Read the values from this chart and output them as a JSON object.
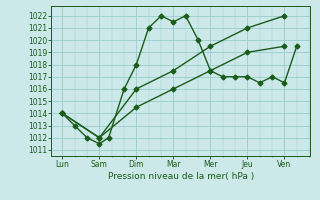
{
  "x_labels": [
    "Lun",
    "Sam",
    "Dim",
    "Mar",
    "Mer",
    "Jeu",
    "Ven"
  ],
  "x_positions": [
    0,
    1,
    2,
    3,
    4,
    5,
    6
  ],
  "line1_x": [
    0,
    0.33,
    0.67,
    1.0,
    1.25,
    1.67,
    2.0,
    2.33,
    2.67,
    3.0,
    3.33,
    3.67,
    4.0,
    4.33,
    4.67,
    5.0,
    5.33,
    5.67,
    6.0,
    6.33
  ],
  "line1_y": [
    1014,
    1013,
    1012,
    1011.5,
    1012,
    1016,
    1018,
    1021,
    1022,
    1021.5,
    1022,
    1020,
    1017.5,
    1017,
    1017,
    1017,
    1016.5,
    1017,
    1016.5,
    1019.5
  ],
  "line2_x": [
    0,
    1,
    2,
    3,
    4,
    5,
    6
  ],
  "line2_y": [
    1014,
    1012,
    1014.5,
    1016,
    1017.5,
    1019,
    1019.5
  ],
  "line3_x": [
    0,
    1,
    2,
    3,
    4,
    5,
    6
  ],
  "line3_y": [
    1014,
    1012,
    1016,
    1017.5,
    1019.5,
    1021,
    1022
  ],
  "ylim": [
    1010.5,
    1022.8
  ],
  "xlim": [
    -0.3,
    6.7
  ],
  "yticks": [
    1011,
    1012,
    1013,
    1014,
    1015,
    1016,
    1017,
    1018,
    1019,
    1020,
    1021,
    1022
  ],
  "xlabel": "Pression niveau de la mer( hPa )",
  "bg_color": "#cce8e8",
  "grid_color": "#99cccc",
  "line_color": "#1a5c1a",
  "tick_label_fontsize": 5.5,
  "xlabel_fontsize": 6.5
}
